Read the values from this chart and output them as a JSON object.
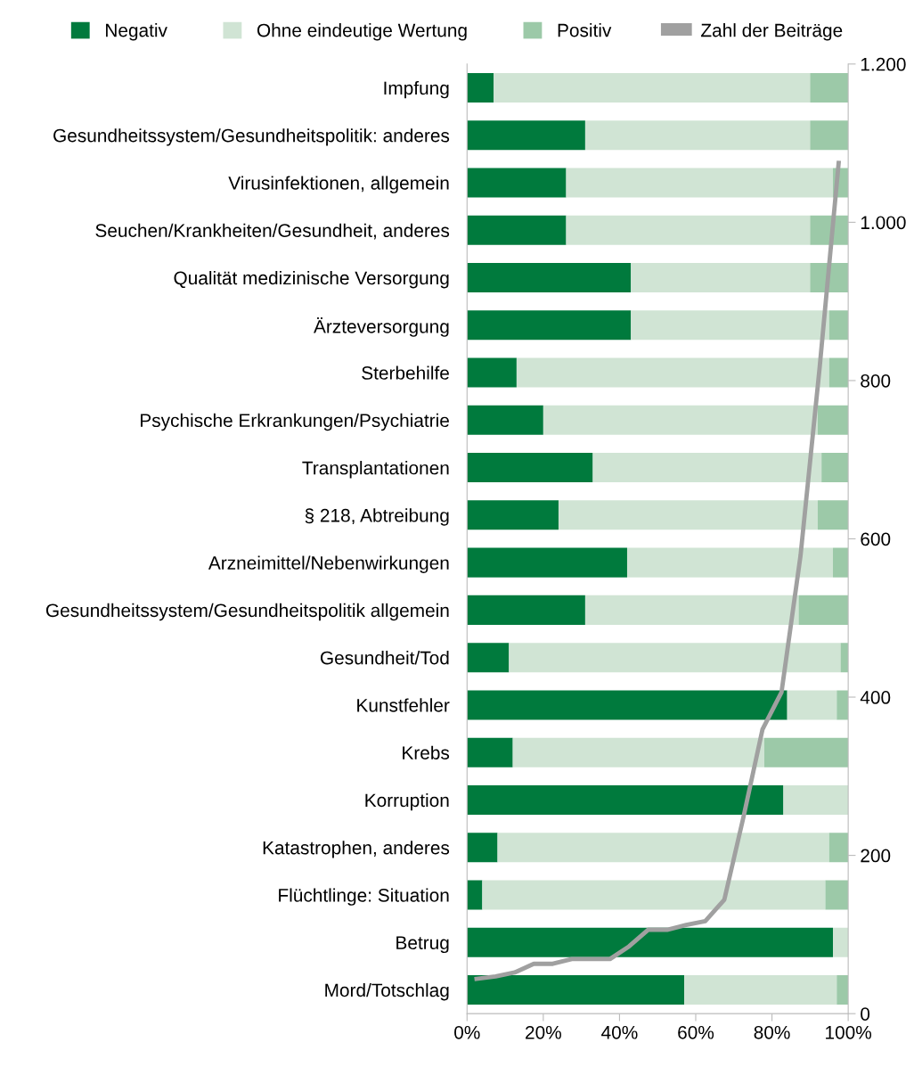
{
  "chart_data": [
    {
      "type": "bar",
      "orientation": "horizontal",
      "stacked": true,
      "legend": "top",
      "categories": [
        "Impfung",
        "Gesundheitssystem/Gesundheitspolitik: anderes",
        "Virusinfektionen, allgemein",
        "Seuchen/Krankheiten/Gesundheit, anderes",
        "Qualität medizinische Versorgung",
        "Ärzteversorgung",
        "Sterbehilfe",
        "Psychische Erkrankungen/Psychiatrie",
        "Transplantationen",
        "§ 218, Abtreibung",
        "Arzneimittel/Nebenwirkungen",
        "Gesundheitssystem/Gesundheitspolitik allgemein",
        "Gesundheit/Tod",
        "Kunstfehler",
        "Krebs",
        "Korruption",
        "Katastrophen, anderes",
        "Flüchtlinge: Situation",
        "Betrug",
        "Mord/Totschlag"
      ],
      "xlim": [
        0,
        100
      ],
      "xticks": [
        {
          "value": 0,
          "label": "0%"
        },
        {
          "value": 20,
          "label": "20%"
        },
        {
          "value": 40,
          "label": "40%"
        },
        {
          "value": 60,
          "label": "60%"
        },
        {
          "value": 80,
          "label": "80%"
        },
        {
          "value": 100,
          "label": "100%"
        }
      ],
      "series": [
        {
          "name": "Negativ",
          "color": "#007a3d",
          "values": [
            7,
            31,
            26,
            26,
            43,
            43,
            13,
            20,
            33,
            24,
            42,
            31,
            11,
            84,
            12,
            83,
            8,
            4,
            96,
            57
          ]
        },
        {
          "name": "Ohne eindeutige Wertung",
          "color": "#d0e4d4",
          "values": [
            83,
            59,
            70,
            64,
            47,
            52,
            82,
            72,
            60,
            68,
            54,
            56,
            87,
            13,
            66,
            17,
            87,
            90,
            4,
            40
          ]
        },
        {
          "name": "Positiv",
          "color": "#9cc9a8",
          "values": [
            10,
            10,
            4,
            10,
            10,
            5,
            5,
            8,
            7,
            8,
            4,
            13,
            2,
            3,
            22,
            0,
            5,
            6,
            0,
            3
          ]
        }
      ]
    },
    {
      "type": "line",
      "legend": "top",
      "tick_labels": "y",
      "categories": [
        null,
        null,
        null,
        null,
        null,
        null,
        null,
        null,
        null,
        null,
        null,
        null,
        null,
        null,
        null,
        null,
        null,
        null,
        null,
        null
      ],
      "ylim": [
        0,
        1200
      ],
      "yticks": [
        0,
        200,
        400,
        600,
        800,
        {
          "value": 1000,
          "label": "1.000"
        },
        {
          "value": 1200,
          "label": "1.200"
        }
      ],
      "series": [
        {
          "name": "Zahl der Beiträge",
          "color": "#a0a0a0",
          "values": [
            44,
            47,
            52,
            63,
            63,
            69,
            69,
            69,
            85,
            106,
            106,
            112,
            117,
            144,
            248,
            359,
            406,
            579,
            816,
            1075
          ]
        }
      ]
    }
  ]
}
